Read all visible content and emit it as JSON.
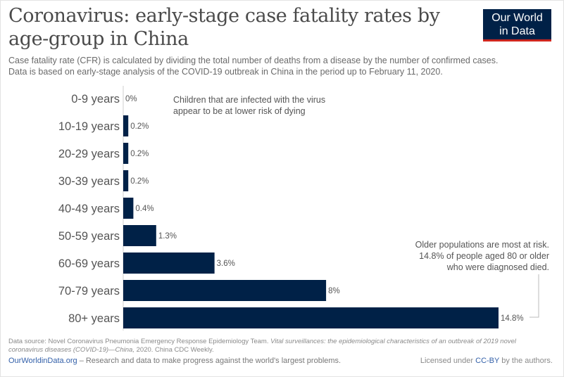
{
  "header": {
    "title": "Coronavirus: early-stage case fatality rates by age-group in China",
    "subtitle_line1": "Case fatality rate (CFR) is calculated by dividing the total number of deaths from a disease by the number of confirmed cases.",
    "subtitle_line2": "Data is based on early-stage analysis of the COVID-19 outbreak in China in the period up to February 11, 2020."
  },
  "logo": {
    "line1": "Our World",
    "line2": "in Data"
  },
  "colors": {
    "bar": "#002147",
    "logo_accent": "#ce261e",
    "link": "#3360a9"
  },
  "chart_data": {
    "type": "bar",
    "orientation": "horizontal",
    "categories": [
      "0-9 years",
      "10-19 years",
      "20-29 years",
      "30-39 years",
      "40-49 years",
      "50-59 years",
      "60-69 years",
      "70-79 years",
      "80+ years"
    ],
    "values": [
      0,
      0.2,
      0.2,
      0.2,
      0.4,
      1.3,
      3.6,
      8,
      14.8
    ],
    "value_labels": [
      "0%",
      "0.2%",
      "0.2%",
      "0.2%",
      "0.4%",
      "1.3%",
      "3.6%",
      "8%",
      "14.8%"
    ],
    "xlim": [
      0,
      14.8
    ],
    "annotations": [
      {
        "lines": [
          "Children that are infected with the virus",
          "appear to be at lower risk of dying"
        ]
      },
      {
        "lines": [
          "Older populations are most at risk.",
          "14.8% of people aged 80 or older",
          "who were diagnosed died."
        ]
      }
    ]
  },
  "footer": {
    "source_prefix": "Data source: Novel Coronavirus Pneumonia Emergency Response Epidemiology Team.",
    "source_italic": "Vital surveillances: the epidemiological characteristics of an outbreak of 2019 novel coronavirus diseases (COVID-19)—China,",
    "source_suffix": "2020. China CDC Weekly.",
    "site": "OurWorldinData.org",
    "tagline": "– Research and data to make progress against the world's largest problems.",
    "license_prefix": "Licensed under",
    "license_link": "CC-BY",
    "license_suffix": "by the authors."
  }
}
